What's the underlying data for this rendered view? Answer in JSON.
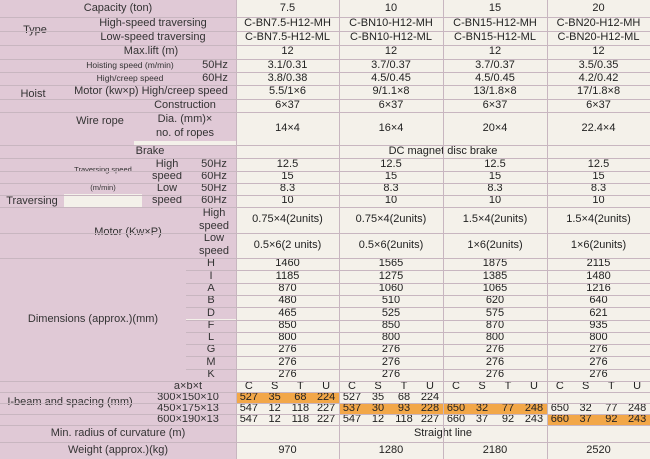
{
  "header": {
    "capacity_label": "Capacity (ton)",
    "capacities": [
      "7.5",
      "10",
      "15",
      "20"
    ]
  },
  "type": {
    "label": "Type",
    "high_speed_label": "High-speed traversing",
    "low_speed_label": "Low-speed traversing",
    "high_speed_models": [
      "C-BN7.5-H12-MH",
      "C-BN10-H12-MH",
      "C-BN15-H12-MH",
      "C-BN20-H12-MH"
    ],
    "low_speed_models": [
      "C-BN7.5-H12-ML",
      "C-BN10-H12-ML",
      "C-BN15-H12-ML",
      "C-BN20-H12-ML"
    ]
  },
  "hoist": {
    "label": "Hoist",
    "max_lift_label": "Max.lift (m)",
    "max_lift": [
      "12",
      "12",
      "12",
      "12"
    ],
    "hoisting_speed_label": "Hoisting speed (m/min)",
    "high_creep_label": "High/creep speed",
    "hz50": "50Hz",
    "hz60": "60Hz",
    "hoisting_50": [
      "3.1/0.31",
      "3.7/0.37",
      "3.7/0.37",
      "3.5/0.35"
    ],
    "hoisting_60": [
      "3.8/0.38",
      "4.5/0.45",
      "4.5/0.45",
      "4.2/0.42"
    ],
    "motor_label": "Motor (kw×p) High/creep speed",
    "motor": [
      "5.5/1×6",
      "9/1.1×8",
      "13/1.8×8",
      "17/1.8×8"
    ],
    "wire_rope_label": "Wire rope",
    "construction_label": "Construction",
    "construction": [
      "6×37",
      "6×37",
      "6×37",
      "6×37"
    ],
    "dia_label_1": "Dia. (mm)×",
    "dia_label_2": "no. of ropes",
    "dia": [
      "14×4",
      "16×4",
      "20×4",
      "22.4×4"
    ]
  },
  "traversing": {
    "label": "Traversing",
    "brake_label": "Brake",
    "brake_value": "DC magnet disc brake",
    "speed_label_1": "Traversing speed",
    "speed_label_2": "(m/min)",
    "high_1": "High",
    "low_1": "Low",
    "speed_word": "speed",
    "hz50": "50Hz",
    "hz60": "60Hz",
    "high_50": [
      "12.5",
      "12.5",
      "12.5",
      "12.5"
    ],
    "high_60": [
      "15",
      "15",
      "15",
      "15"
    ],
    "low_50": [
      "8.3",
      "8.3",
      "8.3",
      "8.3"
    ],
    "low_60": [
      "10",
      "10",
      "10",
      "10"
    ],
    "motor_label": "Motor (Kw×P)",
    "motor_high": [
      "0.75×4(2units)",
      "0.75×4(2units)",
      "1.5×4(2units)",
      "1.5×4(2units)"
    ],
    "motor_low": [
      "0.5×6(2 units)",
      "0.5×6(2units)",
      "1×6(2units)",
      "1×6(2units)"
    ]
  },
  "dimensions": {
    "label": "Dimensions (approx.)(mm)",
    "rows": [
      {
        "key": "H",
        "values": [
          "1460",
          "1565",
          "1875",
          "2115"
        ]
      },
      {
        "key": "I",
        "values": [
          "1185",
          "1275",
          "1385",
          "1480"
        ]
      },
      {
        "key": "A",
        "values": [
          "870",
          "1060",
          "1065",
          "1216"
        ]
      },
      {
        "key": "B",
        "values": [
          "480",
          "510",
          "620",
          "640"
        ]
      },
      {
        "key": "D",
        "values": [
          "465",
          "525",
          "575",
          "621"
        ]
      },
      {
        "key": "F",
        "values": [
          "850",
          "850",
          "870",
          "935"
        ]
      },
      {
        "key": "L",
        "values": [
          "800",
          "800",
          "800",
          "800"
        ]
      },
      {
        "key": "G",
        "values": [
          "276",
          "276",
          "276",
          "276"
        ]
      },
      {
        "key": "M",
        "values": [
          "276",
          "276",
          "276",
          "276"
        ]
      },
      {
        "key": "K",
        "values": [
          "276",
          "276",
          "276",
          "276"
        ]
      }
    ]
  },
  "ibeam": {
    "label": "I-beam and spacing (mm)",
    "axbxt": "a×b×t",
    "cols": [
      "C",
      "S",
      "T",
      "U"
    ],
    "rows": [
      {
        "size": "300×150×10",
        "values": [
          [
            "527",
            "35",
            "68",
            "224"
          ],
          [
            "527",
            "35",
            "68",
            "224"
          ],
          [
            "",
            "",
            "",
            ""
          ],
          [
            "",
            "",
            "",
            ""
          ]
        ],
        "hl": [
          [
            1,
            1,
            1,
            1
          ],
          [
            0,
            0,
            0,
            0
          ],
          [
            0,
            0,
            0,
            0
          ],
          [
            0,
            0,
            0,
            0
          ]
        ]
      },
      {
        "size": "450×175×13",
        "values": [
          [
            "547",
            "12",
            "118",
            "227"
          ],
          [
            "537",
            "30",
            "93",
            "228"
          ],
          [
            "650",
            "32",
            "77",
            "248"
          ],
          [
            "650",
            "32",
            "77",
            "248"
          ]
        ],
        "hl": [
          [
            0,
            0,
            0,
            0
          ],
          [
            1,
            1,
            1,
            1
          ],
          [
            1,
            1,
            1,
            1
          ],
          [
            0,
            0,
            0,
            0
          ]
        ]
      },
      {
        "size": "600×190×13",
        "values": [
          [
            "547",
            "12",
            "118",
            "227"
          ],
          [
            "547",
            "12",
            "118",
            "227"
          ],
          [
            "660",
            "37",
            "92",
            "243"
          ],
          [
            "660",
            "37",
            "92",
            "243"
          ]
        ],
        "hl": [
          [
            0,
            0,
            0,
            0
          ],
          [
            0,
            0,
            0,
            0
          ],
          [
            0,
            0,
            0,
            0
          ],
          [
            1,
            1,
            1,
            1
          ]
        ]
      }
    ]
  },
  "curvature": {
    "label": "Min. radius of curvature (m)",
    "value": "Straight line"
  },
  "weight": {
    "label": "Weight (approx.)(kg)",
    "values": [
      "970",
      "1280",
      "2180",
      "2520"
    ]
  }
}
